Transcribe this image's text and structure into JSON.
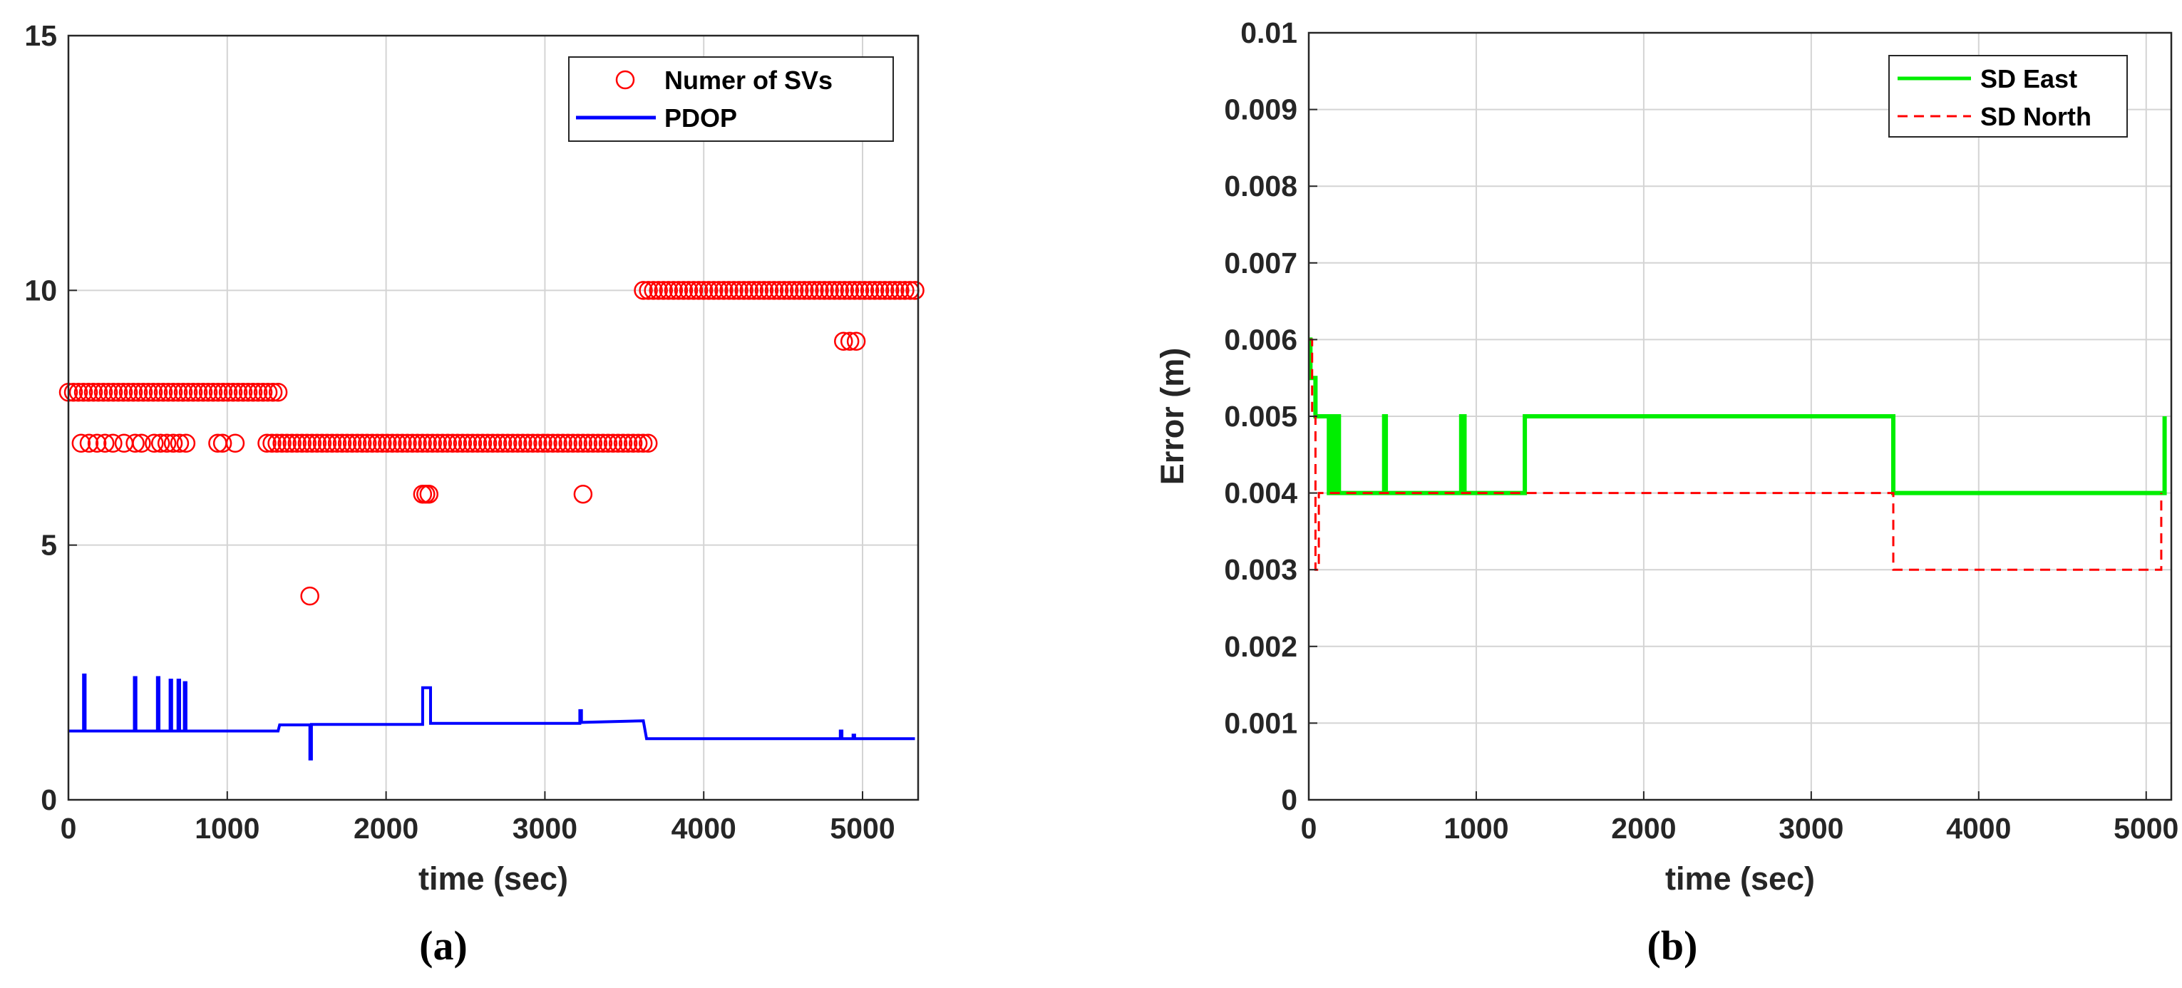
{
  "chart_data": [
    {
      "type": "line",
      "panel": "(a)",
      "xlabel": "time (sec)",
      "ylabel": "",
      "xlim": [
        0,
        5350
      ],
      "ylim": [
        0,
        15
      ],
      "xticks": [
        "0",
        "1000",
        "2000",
        "3000",
        "4000",
        "5000"
      ],
      "yticks": [
        "0",
        "5",
        "10",
        "15"
      ],
      "grid": true,
      "legend_position": "top-right",
      "colors": {
        "svs": "#ff0000",
        "pdop": "#0000ff"
      },
      "series": [
        {
          "name": "Numer of SVs",
          "style": "circle-markers",
          "color": "#ff0000",
          "dense_runs": [
            {
              "x_start": 0,
              "x_end": 1320,
              "y": 8
            },
            {
              "x_start": 1250,
              "x_end": 3650,
              "y": 7
            },
            {
              "x_start": 3620,
              "x_end": 5330,
              "y": 10
            }
          ],
          "points": [
            [
              80,
              7
            ],
            [
              130,
              7
            ],
            [
              180,
              7
            ],
            [
              230,
              7
            ],
            [
              280,
              7
            ],
            [
              350,
              7
            ],
            [
              420,
              7
            ],
            [
              460,
              7
            ],
            [
              540,
              7
            ],
            [
              580,
              7
            ],
            [
              620,
              7
            ],
            [
              660,
              7
            ],
            [
              700,
              7
            ],
            [
              740,
              7
            ],
            [
              940,
              7
            ],
            [
              970,
              7
            ],
            [
              1050,
              7
            ],
            [
              1520,
              4
            ],
            [
              2230,
              6
            ],
            [
              2250,
              6
            ],
            [
              2270,
              6
            ],
            [
              3240,
              6
            ],
            [
              4880,
              9
            ],
            [
              4920,
              9
            ],
            [
              4960,
              9
            ]
          ]
        },
        {
          "name": "PDOP",
          "style": "line",
          "color": "#0000ff",
          "x": [
            0,
            95,
            95,
            105,
            105,
            415,
            415,
            425,
            425,
            560,
            560,
            570,
            570,
            640,
            640,
            650,
            650,
            690,
            690,
            700,
            700,
            730,
            730,
            740,
            740,
            1320,
            1330,
            1520,
            1520,
            1530,
            1530,
            2230,
            2230,
            2280,
            2280,
            3220,
            3220,
            3230,
            3230,
            3620,
            3640,
            4860,
            4860,
            4870,
            4870,
            4940,
            4940,
            4950,
            4950,
            5330
          ],
          "y": [
            1.35,
            1.35,
            2.45,
            2.45,
            1.35,
            1.35,
            2.4,
            2.4,
            1.35,
            1.35,
            2.4,
            2.4,
            1.35,
            1.35,
            2.35,
            2.35,
            1.35,
            1.35,
            2.35,
            2.35,
            1.35,
            1.35,
            2.3,
            2.3,
            1.35,
            1.35,
            1.47,
            1.47,
            0.8,
            0.8,
            1.48,
            1.48,
            2.2,
            2.2,
            1.5,
            1.5,
            1.75,
            1.75,
            1.52,
            1.55,
            1.2,
            1.2,
            1.35,
            1.35,
            1.2,
            1.2,
            1.27,
            1.27,
            1.2,
            1.2
          ]
        }
      ]
    },
    {
      "type": "line",
      "panel": "(b)",
      "xlabel": "time (sec)",
      "ylabel": "Error (m)",
      "xlim": [
        0,
        5150
      ],
      "ylim": [
        0,
        0.01
      ],
      "xticks": [
        "0",
        "1000",
        "2000",
        "3000",
        "4000",
        "5000"
      ],
      "yticks": [
        "0",
        "0.001",
        "0.002",
        "0.003",
        "0.004",
        "0.005",
        "0.006",
        "0.007",
        "0.008",
        "0.009",
        "0.01"
      ],
      "grid": true,
      "legend_position": "top-right",
      "colors": {
        "east": "#00ee00",
        "north": "#ff0000"
      },
      "series": [
        {
          "name": "SD East",
          "style": "solid",
          "color": "#00ee00",
          "x": [
            0,
            10,
            10,
            40,
            40,
            120,
            120,
            135,
            135,
            150,
            150,
            165,
            165,
            180,
            180,
            210,
            210,
            450,
            450,
            460,
            460,
            910,
            910,
            930,
            930,
            1290,
            1290,
            3490,
            3490,
            5110,
            5110
          ],
          "y": [
            0.006,
            0.006,
            0.0055,
            0.0055,
            0.005,
            0.005,
            0.004,
            0.004,
            0.005,
            0.005,
            0.004,
            0.004,
            0.005,
            0.005,
            0.004,
            0.004,
            0.004,
            0.004,
            0.005,
            0.005,
            0.004,
            0.004,
            0.005,
            0.005,
            0.004,
            0.004,
            0.005,
            0.005,
            0.004,
            0.004,
            0.005
          ]
        },
        {
          "name": "SD North",
          "style": "dashed",
          "color": "#ff0000",
          "x": [
            0,
            20,
            20,
            40,
            40,
            60,
            60,
            3490,
            3490,
            5090,
            5090
          ],
          "y": [
            0.006,
            0.006,
            0.005,
            0.005,
            0.003,
            0.003,
            0.004,
            0.004,
            0.003,
            0.003,
            0.004
          ]
        }
      ]
    }
  ],
  "captions": {
    "a": "(a)",
    "b": "(b)"
  }
}
